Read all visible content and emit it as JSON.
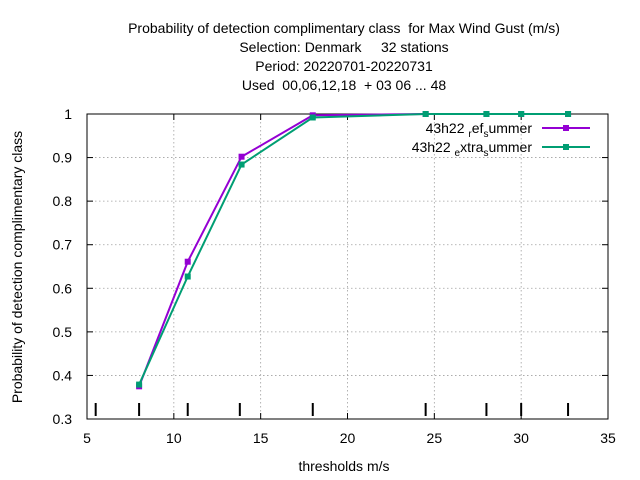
{
  "chart_data": {
    "type": "line",
    "title_lines": [
      "Probability of detection complimentary class  for Max Wind Gust (m/s)",
      "Selection: Denmark     32 stations",
      "Period: 20220701-20220731",
      "Used  00,06,12,18  + 03 06 ... 48"
    ],
    "xlabel": "thresholds m/s",
    "ylabel": "Probability of detection complimentary class",
    "xlim": [
      5,
      35
    ],
    "ylim": [
      0.3,
      1.0
    ],
    "xticks": [
      5,
      10,
      15,
      20,
      25,
      30,
      35
    ],
    "yticks": [
      0.3,
      0.4,
      0.5,
      0.6,
      0.7,
      0.8,
      0.9,
      1.0
    ],
    "ytick_labels": [
      "0.3",
      "0.4",
      "0.5",
      "0.6",
      "0.7",
      "0.8",
      "0.9",
      "1"
    ],
    "grid": true,
    "legend_position": "top-right",
    "threshold_markers": [
      5.5,
      8.0,
      10.8,
      13.8,
      18.0,
      24.5,
      28.0,
      30.0,
      32.7
    ],
    "series": [
      {
        "name": "43h22_ref_summer",
        "label_parts": [
          "43h22 ",
          "r",
          "ef",
          "s",
          "ummer"
        ],
        "color": "#9400d3",
        "x": [
          8.0,
          10.8,
          13.9,
          18.0,
          24.5,
          28.0,
          30.0,
          32.7
        ],
        "y": [
          0.375,
          0.661,
          0.902,
          0.997,
          1.0,
          1.0,
          1.0,
          1.0
        ]
      },
      {
        "name": "43h22_extra_summer",
        "label_parts": [
          "43h22 ",
          "e",
          "xtra",
          "s",
          "ummer"
        ],
        "color": "#009e73",
        "x": [
          8.0,
          10.8,
          13.9,
          18.0,
          24.5,
          28.0,
          30.0,
          32.7
        ],
        "y": [
          0.379,
          0.627,
          0.884,
          0.992,
          1.0,
          1.0,
          1.0,
          1.0
        ]
      }
    ]
  }
}
